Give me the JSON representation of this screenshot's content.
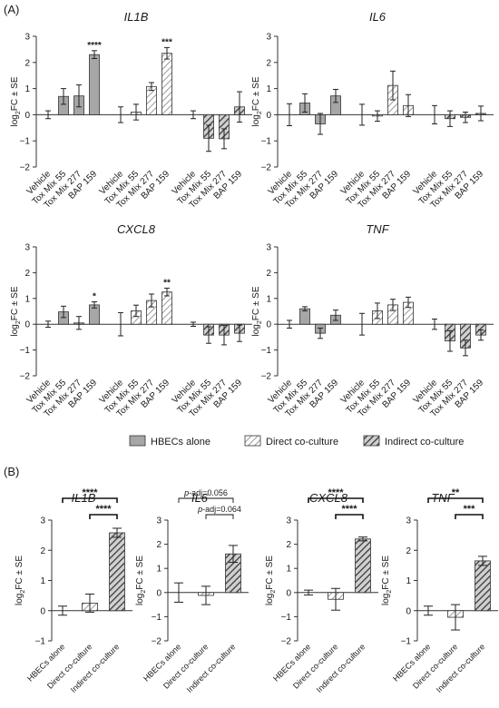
{
  "figure": {
    "panel_a_label": "(A)",
    "panel_b_label": "(B)",
    "y_axis_label_base": "log",
    "y_axis_label_sub": "2",
    "y_axis_label_rest": "FC ± SE"
  },
  "legend": {
    "items": [
      {
        "label": "HBECs alone",
        "pattern": "solid"
      },
      {
        "label": "Direct co-culture",
        "pattern": "light-hatch"
      },
      {
        "label": "Indirect co-culture",
        "pattern": "dark-hatch"
      }
    ]
  },
  "colors": {
    "solid_fill": "#a6a6a6",
    "hatch_light": "#c8c8c8",
    "hatch_dark": "#5a5a5a",
    "stroke": "#333333"
  },
  "chart_data": [
    {
      "type": "bar",
      "panel": "A",
      "title": "IL1B",
      "ylim": [
        -2,
        3
      ],
      "yticks": [
        -2,
        -1,
        0,
        1,
        2,
        3
      ],
      "groups": [
        "HBECs alone",
        "Direct co-culture",
        "Indirect co-culture"
      ],
      "categories": [
        "Vehicle",
        "Tox Mix 55",
        "Tox Mix 277",
        "BAP 159"
      ],
      "series": [
        {
          "name": "HBECs alone",
          "values": [
            0.0,
            0.7,
            0.72,
            2.3
          ],
          "errors": [
            0.15,
            0.3,
            0.42,
            0.15
          ],
          "sig": [
            "",
            "",
            "",
            "****"
          ]
        },
        {
          "name": "Direct co-culture",
          "values": [
            0.0,
            0.1,
            1.08,
            2.35
          ],
          "errors": [
            0.3,
            0.3,
            0.15,
            0.22
          ],
          "sig": [
            "",
            "",
            "",
            "***"
          ]
        },
        {
          "name": "Indirect co-culture",
          "values": [
            0.0,
            -0.9,
            -0.92,
            0.3
          ],
          "errors": [
            0.15,
            0.5,
            0.38,
            0.58
          ],
          "sig": [
            "",
            "",
            "",
            ""
          ]
        }
      ]
    },
    {
      "type": "bar",
      "panel": "A",
      "title": "IL6",
      "ylim": [
        -2,
        3
      ],
      "yticks": [
        -2,
        -1,
        0,
        1,
        2,
        3
      ],
      "groups": [
        "HBECs alone",
        "Direct co-culture",
        "Indirect co-culture"
      ],
      "categories": [
        "Vehicle",
        "Tox Mix 55",
        "Tox Mix 277",
        "BAP 159"
      ],
      "series": [
        {
          "name": "HBECs alone",
          "values": [
            0.0,
            0.45,
            -0.35,
            0.72
          ],
          "errors": [
            0.42,
            0.35,
            0.4,
            0.25
          ],
          "sig": [
            "",
            "",
            "",
            ""
          ]
        },
        {
          "name": "Direct co-culture",
          "values": [
            0.0,
            -0.05,
            1.12,
            0.35
          ],
          "errors": [
            0.4,
            0.2,
            0.55,
            0.42
          ],
          "sig": [
            "",
            "",
            "",
            ""
          ]
        },
        {
          "name": "Indirect co-culture",
          "values": [
            0.0,
            -0.15,
            -0.1,
            0.05
          ],
          "errors": [
            0.35,
            0.3,
            0.2,
            0.28
          ],
          "sig": [
            "",
            "",
            "",
            ""
          ]
        }
      ]
    },
    {
      "type": "bar",
      "panel": "A",
      "title": "CXCL8",
      "ylim": [
        -2,
        3
      ],
      "yticks": [
        -2,
        -1,
        0,
        1,
        2,
        3
      ],
      "groups": [
        "HBECs alone",
        "Direct co-culture",
        "Indirect co-culture"
      ],
      "categories": [
        "Vehicle",
        "Tox Mix 55",
        "Tox Mix 277",
        "BAP 159"
      ],
      "series": [
        {
          "name": "HBECs alone",
          "values": [
            0.0,
            0.48,
            0.05,
            0.75
          ],
          "errors": [
            0.12,
            0.22,
            0.25,
            0.12
          ],
          "sig": [
            "",
            "",
            "",
            "*"
          ]
        },
        {
          "name": "Direct co-culture",
          "values": [
            0.0,
            0.52,
            0.92,
            1.25
          ],
          "errors": [
            0.45,
            0.22,
            0.25,
            0.15
          ],
          "sig": [
            "",
            "",
            "",
            "**"
          ]
        },
        {
          "name": "Indirect co-culture",
          "values": [
            0.0,
            -0.42,
            -0.42,
            -0.35
          ],
          "errors": [
            0.08,
            0.32,
            0.38,
            0.32
          ],
          "sig": [
            "",
            "",
            "",
            ""
          ]
        }
      ]
    },
    {
      "type": "bar",
      "panel": "A",
      "title": "TNF",
      "ylim": [
        -2,
        3
      ],
      "yticks": [
        -2,
        -1,
        0,
        1,
        2,
        3
      ],
      "groups": [
        "HBECs alone",
        "Direct co-culture",
        "Indirect co-culture"
      ],
      "categories": [
        "Vehicle",
        "Tox Mix 55",
        "Tox Mix 277",
        "BAP 159"
      ],
      "series": [
        {
          "name": "HBECs alone",
          "values": [
            0.0,
            0.6,
            -0.35,
            0.35
          ],
          "errors": [
            0.15,
            0.08,
            0.2,
            0.2
          ],
          "sig": [
            "",
            "",
            "",
            ""
          ]
        },
        {
          "name": "Direct co-culture",
          "values": [
            0.0,
            0.52,
            0.75,
            0.85
          ],
          "errors": [
            0.42,
            0.3,
            0.22,
            0.2
          ],
          "sig": [
            "",
            "",
            "",
            ""
          ]
        },
        {
          "name": "Indirect co-culture",
          "values": [
            0.0,
            -0.65,
            -0.92,
            -0.42
          ],
          "errors": [
            0.2,
            0.4,
            0.3,
            0.2
          ],
          "sig": [
            "",
            "",
            "",
            ""
          ]
        }
      ]
    },
    {
      "type": "bar",
      "panel": "B",
      "title": "IL1B",
      "ylim": [
        -1,
        3
      ],
      "yticks": [
        -1,
        0,
        1,
        2,
        3
      ],
      "categories": [
        "HBECs alone",
        "Direct co-culture",
        "Indirect co-culture"
      ],
      "values": [
        0.0,
        0.25,
        2.58
      ],
      "errors": [
        0.15,
        0.3,
        0.15
      ],
      "brackets": [
        {
          "from": 0,
          "to": 2,
          "label": "****"
        },
        {
          "from": 1,
          "to": 2,
          "label": "****"
        }
      ]
    },
    {
      "type": "bar",
      "panel": "B",
      "title": "IL6",
      "ylim": [
        -2,
        3
      ],
      "yticks": [
        -2,
        -1,
        0,
        1,
        2,
        3
      ],
      "categories": [
        "HBECs alone",
        "Direct co-culture",
        "Indirect co-culture"
      ],
      "values": [
        0.0,
        -0.12,
        1.6
      ],
      "errors": [
        0.4,
        0.38,
        0.35
      ],
      "brackets": [
        {
          "from": 0,
          "to": 2,
          "label": "p-adj=0.056"
        },
        {
          "from": 1,
          "to": 2,
          "label": "p-adj=0.064"
        }
      ]
    },
    {
      "type": "bar",
      "panel": "B",
      "title": "CXCL8",
      "ylim": [
        -2,
        3
      ],
      "yticks": [
        -2,
        -1,
        0,
        1,
        2,
        3
      ],
      "categories": [
        "HBECs alone",
        "Direct co-culture",
        "Indirect co-culture"
      ],
      "values": [
        0.0,
        -0.28,
        2.22
      ],
      "errors": [
        0.1,
        0.45,
        0.08
      ],
      "brackets": [
        {
          "from": 0,
          "to": 2,
          "label": "****"
        },
        {
          "from": 1,
          "to": 2,
          "label": "****"
        }
      ]
    },
    {
      "type": "bar",
      "panel": "B",
      "title": "TNF",
      "ylim": [
        -1,
        3
      ],
      "yticks": [
        -1,
        0,
        1,
        2,
        3
      ],
      "categories": [
        "HBECs alone",
        "Direct co-culture",
        "Indirect co-culture"
      ],
      "values": [
        0.0,
        -0.22,
        1.65
      ],
      "errors": [
        0.15,
        0.42,
        0.15
      ],
      "brackets": [
        {
          "from": 0,
          "to": 2,
          "label": "**"
        },
        {
          "from": 1,
          "to": 2,
          "label": "***"
        }
      ]
    }
  ]
}
